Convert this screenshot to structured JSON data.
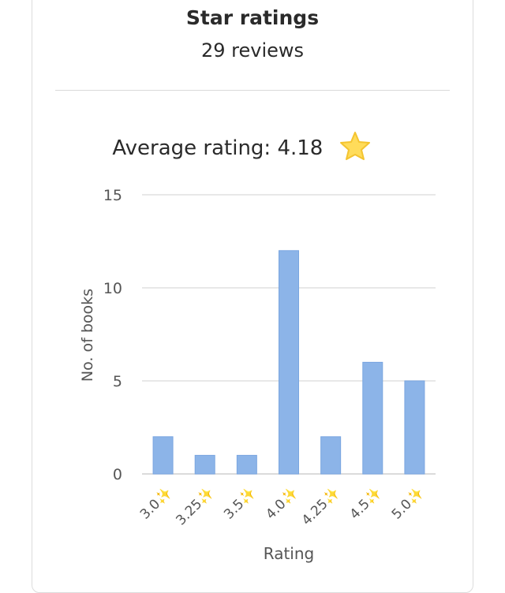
{
  "header": {
    "title": "Star ratings",
    "subtitle": "29 reviews"
  },
  "average": {
    "label": "Average rating: 4.18",
    "icon": "star-icon"
  },
  "colors": {
    "bar": "#8cb4e8",
    "bar_edge": "#7aa6e0",
    "grid": "#e0e0e0",
    "axis": "#cfcfcf",
    "star": "#ffdc5a"
  },
  "chart_data": {
    "type": "bar",
    "categories": [
      "3.0✨",
      "3.25✨",
      "3.5✨",
      "4.0✨",
      "4.25✨",
      "4.5✨",
      "5.0✨"
    ],
    "values": [
      2,
      1,
      1,
      12,
      2,
      6,
      5
    ],
    "xlabel": "Rating",
    "ylabel": "No. of books",
    "ylim": [
      0,
      15
    ],
    "yticks": [
      0,
      5,
      10,
      15
    ],
    "grid": true,
    "legend": "none"
  }
}
